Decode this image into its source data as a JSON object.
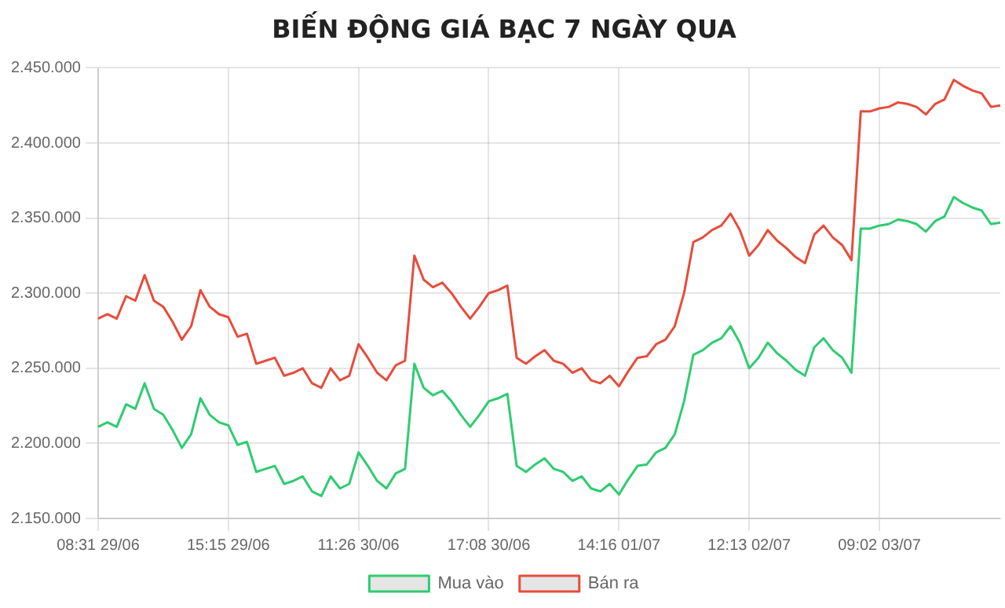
{
  "chart_data": {
    "type": "line",
    "title": "BIẾN ĐỘNG GIÁ BẠC 7 NGÀY QUA",
    "categories": [
      "08:31 29/06",
      null,
      null,
      null,
      null,
      null,
      null,
      null,
      null,
      null,
      null,
      null,
      null,
      null,
      "15:15 29/06",
      null,
      null,
      null,
      null,
      null,
      null,
      null,
      null,
      null,
      null,
      null,
      null,
      null,
      "11:26 30/06",
      null,
      null,
      null,
      null,
      null,
      null,
      null,
      null,
      null,
      null,
      null,
      null,
      null,
      "17:08 30/06",
      null,
      null,
      null,
      null,
      null,
      null,
      null,
      null,
      null,
      null,
      null,
      null,
      null,
      "14:16 01/07",
      null,
      null,
      null,
      null,
      null,
      null,
      null,
      null,
      null,
      null,
      null,
      null,
      null,
      "12:13 02/07",
      null,
      null,
      null,
      null,
      null,
      null,
      null,
      null,
      null,
      null,
      null,
      null,
      null,
      "09:02 03/07",
      null,
      null,
      null,
      null,
      null,
      null,
      null,
      null,
      null,
      null,
      null,
      null,
      null
    ],
    "series": [
      {
        "name": "Mua vào",
        "color": "#2ecc71",
        "values": [
          2211000,
          2214000,
          2211000,
          2226000,
          2223000,
          2240000,
          2223000,
          2219000,
          2209000,
          2197000,
          2206000,
          2230000,
          2219000,
          2214000,
          2212000,
          2199000,
          2201000,
          2181000,
          2183000,
          2185000,
          2173000,
          2175000,
          2178000,
          2168000,
          2165000,
          2178000,
          2170000,
          2173000,
          2194000,
          2185000,
          2175000,
          2170000,
          2180000,
          2183000,
          2253000,
          2237000,
          2232000,
          2235000,
          2228000,
          2219000,
          2211000,
          2219000,
          2228000,
          2230000,
          2233000,
          2185000,
          2181000,
          2186000,
          2190000,
          2183000,
          2181000,
          2175000,
          2178000,
          2170000,
          2168000,
          2173000,
          2166000,
          2176000,
          2185000,
          2186000,
          2194000,
          2197000,
          2206000,
          2228000,
          2259000,
          2262000,
          2267000,
          2270000,
          2278000,
          2267000,
          2250000,
          2257000,
          2267000,
          2260000,
          2255000,
          2249000,
          2245000,
          2264000,
          2270000,
          2262000,
          2257000,
          2247000,
          2343000,
          2343000,
          2345000,
          2346000,
          2349000,
          2348000,
          2346000,
          2341000,
          2348000,
          2351000,
          2364000,
          2360000,
          2357000,
          2355000,
          2346000,
          2347000
        ]
      },
      {
        "name": "Bán ra",
        "color": "#e74c3c",
        "values": [
          2283000,
          2286000,
          2283000,
          2298000,
          2295000,
          2312000,
          2295000,
          2291000,
          2281000,
          2269000,
          2278000,
          2302000,
          2291000,
          2286000,
          2284000,
          2271000,
          2273000,
          2253000,
          2255000,
          2257000,
          2245000,
          2247000,
          2250000,
          2240000,
          2237000,
          2250000,
          2242000,
          2245000,
          2266000,
          2257000,
          2247000,
          2242000,
          2252000,
          2255000,
          2325000,
          2309000,
          2304000,
          2307000,
          2300000,
          2291000,
          2283000,
          2291000,
          2300000,
          2302000,
          2305000,
          2257000,
          2253000,
          2258000,
          2262000,
          2255000,
          2253000,
          2247000,
          2250000,
          2242000,
          2240000,
          2245000,
          2238000,
          2248000,
          2257000,
          2258000,
          2266000,
          2269000,
          2278000,
          2300000,
          2334000,
          2337000,
          2342000,
          2345000,
          2353000,
          2342000,
          2325000,
          2332000,
          2342000,
          2335000,
          2330000,
          2324000,
          2320000,
          2339000,
          2345000,
          2337000,
          2332000,
          2322000,
          2421000,
          2421000,
          2423000,
          2424000,
          2427000,
          2426000,
          2424000,
          2419000,
          2426000,
          2429000,
          2442000,
          2438000,
          2435000,
          2433000,
          2424000,
          2425000
        ]
      }
    ],
    "ylim": [
      2150000,
      2450000
    ],
    "yticks": [
      {
        "value": 2150000,
        "label": "2.150.000"
      },
      {
        "value": 2200000,
        "label": "2.200.000"
      },
      {
        "value": 2250000,
        "label": "2.250.000"
      },
      {
        "value": 2300000,
        "label": "2.300.000"
      },
      {
        "value": 2350000,
        "label": "2.350.000"
      },
      {
        "value": 2400000,
        "label": "2.400.000"
      },
      {
        "value": 2450000,
        "label": "2.450.000"
      }
    ],
    "grid": true,
    "legend": "bottom",
    "marker": "none",
    "line_style": "solid"
  }
}
